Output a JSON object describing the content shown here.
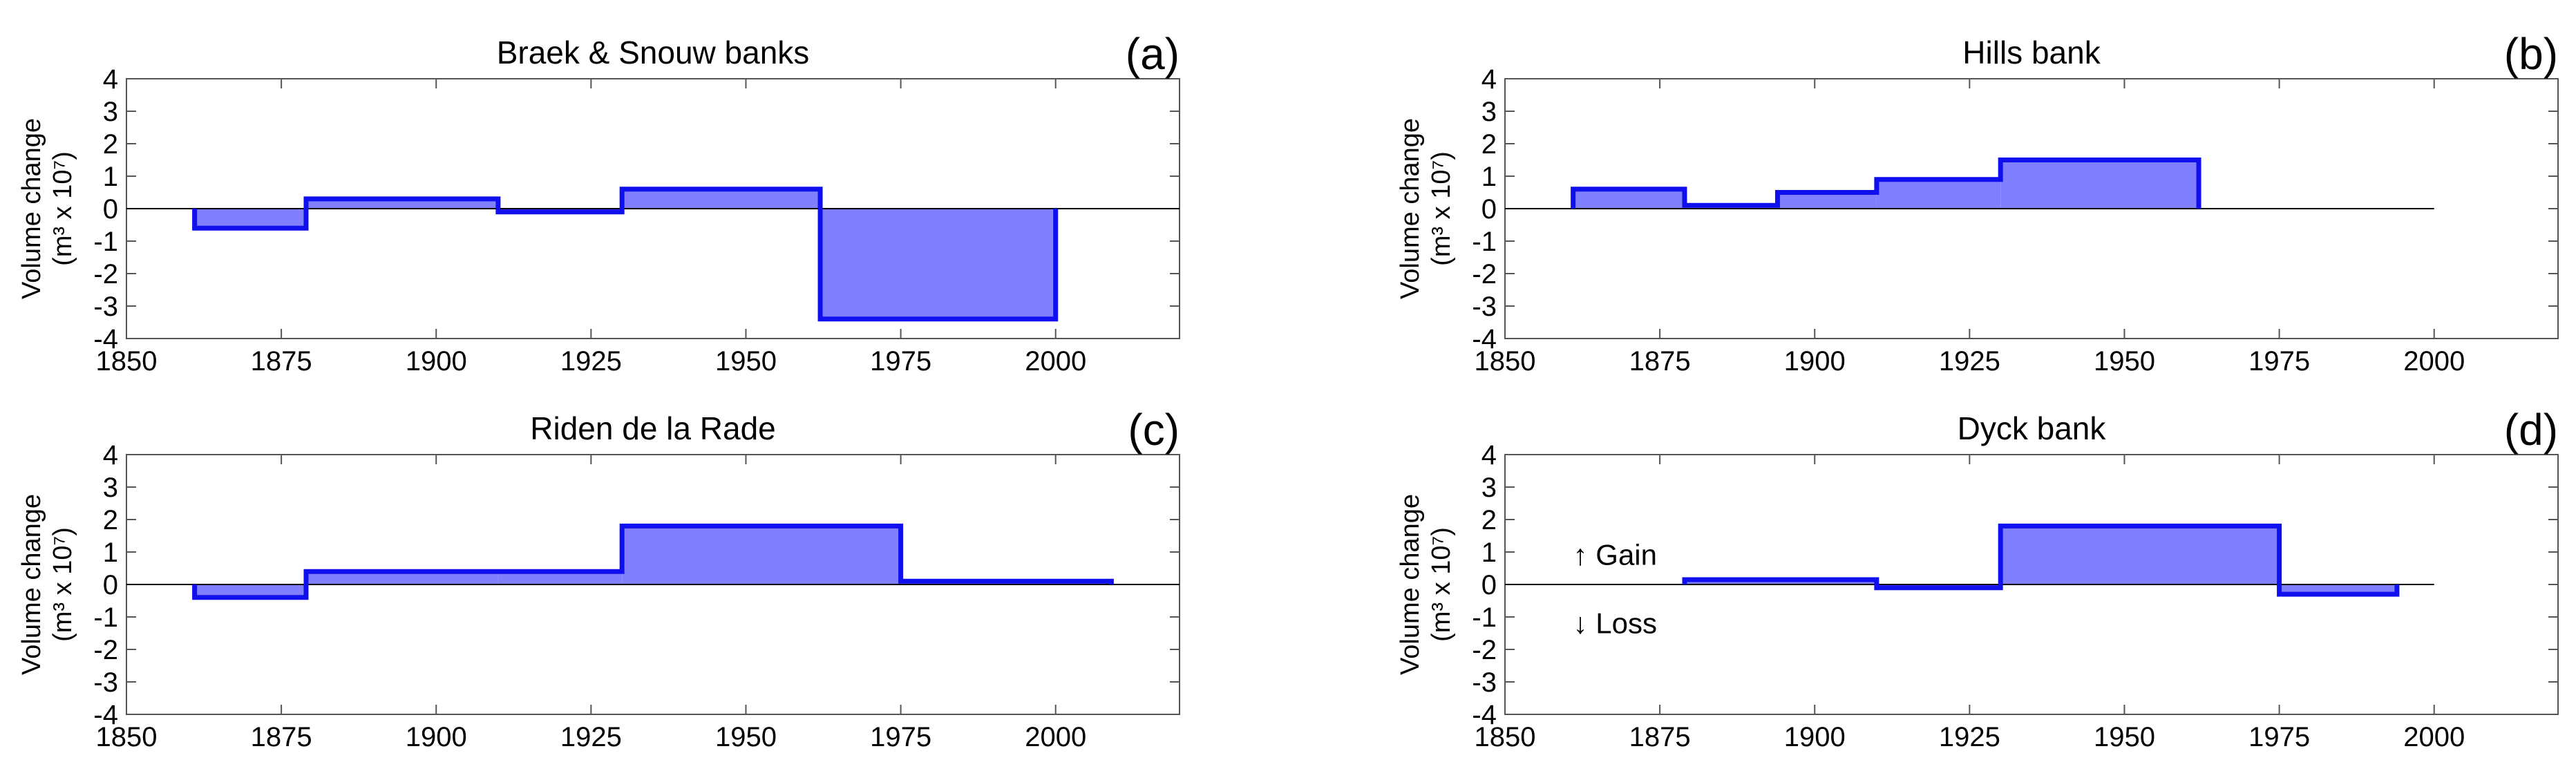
{
  "chart_data": [
    {
      "type": "bar",
      "title": "Braek & Snouw banks",
      "panel_label": "(a)",
      "ylabel_line1": "Volume change",
      "ylabel_line2": "(m³ x 10⁷)",
      "xlim": [
        1850,
        2020
      ],
      "ylim": [
        -4,
        4
      ],
      "xticks": [
        1850,
        1875,
        1900,
        1925,
        1950,
        1975,
        2000
      ],
      "yticks": [
        4,
        3,
        2,
        1,
        0,
        -1,
        -2,
        -3,
        -4
      ],
      "segments": [
        {
          "x0": 1861,
          "x1": 1879,
          "value": -0.6
        },
        {
          "x0": 1879,
          "x1": 1910,
          "value": 0.3
        },
        {
          "x0": 1910,
          "x1": 1930,
          "value": -0.1
        },
        {
          "x0": 1930,
          "x1": 1962,
          "value": 0.6
        },
        {
          "x0": 1962,
          "x1": 2000,
          "value": -3.4
        }
      ],
      "annotations": []
    },
    {
      "type": "bar",
      "title": "Hills bank",
      "panel_label": "(b)",
      "ylabel_line1": "Volume change",
      "ylabel_line2": "(m³ x 10⁷)",
      "xlim": [
        1850,
        2020
      ],
      "ylim": [
        -4,
        4
      ],
      "xticks": [
        1850,
        1875,
        1900,
        1925,
        1950,
        1975,
        2000
      ],
      "yticks": [
        4,
        3,
        2,
        1,
        0,
        -1,
        -2,
        -3,
        -4
      ],
      "zero_line_end": 2000,
      "segments": [
        {
          "x0": 1861,
          "x1": 1879,
          "value": 0.6
        },
        {
          "x0": 1879,
          "x1": 1894,
          "value": 0.1
        },
        {
          "x0": 1894,
          "x1": 1910,
          "value": 0.5
        },
        {
          "x0": 1910,
          "x1": 1930,
          "value": 0.9
        },
        {
          "x0": 1930,
          "x1": 1962,
          "value": 1.5
        }
      ],
      "annotations": []
    },
    {
      "type": "bar",
      "title": "Riden de la Rade",
      "panel_label": "(c)",
      "ylabel_line1": "Volume change",
      "ylabel_line2": "(m³ x 10⁷)",
      "xlim": [
        1850,
        2020
      ],
      "ylim": [
        -4,
        4
      ],
      "xticks": [
        1850,
        1875,
        1900,
        1925,
        1950,
        1975,
        2000
      ],
      "yticks": [
        4,
        3,
        2,
        1,
        0,
        -1,
        -2,
        -3,
        -4
      ],
      "segments": [
        {
          "x0": 1861,
          "x1": 1879,
          "value": -0.4
        },
        {
          "x0": 1879,
          "x1": 1910,
          "value": 0.4
        },
        {
          "x0": 1910,
          "x1": 1930,
          "value": 0.4
        },
        {
          "x0": 1930,
          "x1": 1975,
          "value": 1.8
        },
        {
          "x0": 1975,
          "x1": 2009,
          "value": 0.1
        }
      ],
      "annotations": []
    },
    {
      "type": "bar",
      "title": "Dyck bank",
      "panel_label": "(d)",
      "ylabel_line1": "Volume change",
      "ylabel_line2": "(m³ x 10⁷)",
      "xlim": [
        1850,
        2020
      ],
      "ylim": [
        -4,
        4
      ],
      "xticks": [
        1850,
        1875,
        1900,
        1925,
        1950,
        1975,
        2000
      ],
      "yticks": [
        4,
        3,
        2,
        1,
        0,
        -1,
        -2,
        -3,
        -4
      ],
      "zero_line_end": 2000,
      "segments": [
        {
          "x0": 1879,
          "x1": 1910,
          "value": 0.15
        },
        {
          "x0": 1910,
          "x1": 1930,
          "value": -0.1
        },
        {
          "x0": 1930,
          "x1": 1975,
          "value": 1.8
        },
        {
          "x0": 1975,
          "x1": 1994,
          "value": -0.3
        }
      ],
      "annotations": [
        {
          "text": "↑ Gain",
          "x": 1861,
          "y": 0.9
        },
        {
          "text": "↓ Loss",
          "x": 1861,
          "y": -1.2
        }
      ]
    }
  ],
  "colors": {
    "fill": "#8080ff",
    "stroke": "#1010ee",
    "axis": "#555555",
    "zero_line": "#000000"
  }
}
